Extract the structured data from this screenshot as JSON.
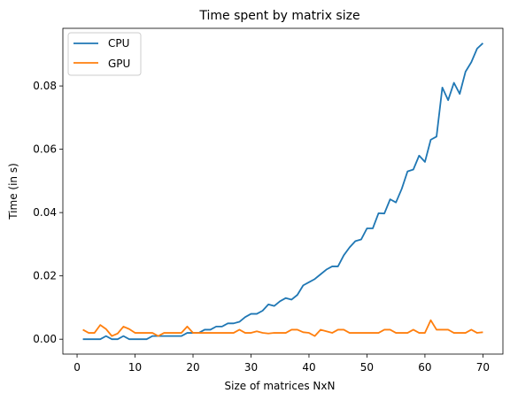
{
  "chart_data": {
    "type": "line",
    "title": "Time spent by matrix size",
    "xlabel": "Size of matrices NxN",
    "ylabel": "Time (in s)",
    "xlim": [
      -2.45,
      73.45
    ],
    "ylim": [
      -0.0047,
      0.0982
    ],
    "xticks": [
      0,
      10,
      20,
      30,
      40,
      50,
      60,
      70
    ],
    "yticks": [
      0.0,
      0.02,
      0.04,
      0.06,
      0.08
    ],
    "ytick_labels": [
      "0.00",
      "0.02",
      "0.04",
      "0.06",
      "0.08"
    ],
    "grid": false,
    "legend": "upper left",
    "x": [
      1,
      2,
      3,
      4,
      5,
      6,
      7,
      8,
      9,
      10,
      11,
      12,
      13,
      14,
      15,
      16,
      17,
      18,
      19,
      20,
      21,
      22,
      23,
      24,
      25,
      26,
      27,
      28,
      29,
      30,
      31,
      32,
      33,
      34,
      35,
      36,
      37,
      38,
      39,
      40,
      41,
      42,
      43,
      44,
      45,
      46,
      47,
      48,
      49,
      50,
      51,
      52,
      53,
      54,
      55,
      56,
      57,
      58,
      59,
      60,
      61,
      62,
      63,
      64,
      65,
      66,
      67,
      68,
      69,
      70
    ],
    "series": [
      {
        "name": "CPU",
        "color": "#1f77b4",
        "values": [
          0.0,
          0.0,
          0.0,
          0.0,
          0.001,
          0.0,
          0.0,
          0.001,
          0.0,
          0.0,
          0.0,
          0.0,
          0.001,
          0.001,
          0.001,
          0.001,
          0.001,
          0.001,
          0.002,
          0.002,
          0.002,
          0.003,
          0.003,
          0.004,
          0.004,
          0.005,
          0.005,
          0.0055,
          0.007,
          0.008,
          0.008,
          0.009,
          0.011,
          0.0105,
          0.012,
          0.013,
          0.0125,
          0.014,
          0.017,
          0.018,
          0.019,
          0.0205,
          0.022,
          0.023,
          0.023,
          0.0265,
          0.029,
          0.031,
          0.0315,
          0.035,
          0.035,
          0.0398,
          0.0397,
          0.0442,
          0.0432,
          0.0475,
          0.053,
          0.0536,
          0.058,
          0.056,
          0.063,
          0.064,
          0.0795,
          0.0755,
          0.081,
          0.0775,
          0.0845,
          0.0875,
          0.0918,
          0.0935
        ]
      },
      {
        "name": "GPU",
        "color": "#ff7f0e",
        "values": [
          0.003,
          0.002,
          0.002,
          0.0045,
          0.0032,
          0.001,
          0.0018,
          0.004,
          0.0032,
          0.002,
          0.002,
          0.002,
          0.002,
          0.001,
          0.002,
          0.002,
          0.002,
          0.002,
          0.004,
          0.002,
          0.002,
          0.002,
          0.002,
          0.002,
          0.002,
          0.002,
          0.002,
          0.003,
          0.002,
          0.002,
          0.0025,
          0.002,
          0.0018,
          0.002,
          0.002,
          0.002,
          0.003,
          0.003,
          0.0022,
          0.002,
          0.001,
          0.003,
          0.0025,
          0.002,
          0.003,
          0.003,
          0.002,
          0.002,
          0.002,
          0.002,
          0.002,
          0.002,
          0.003,
          0.003,
          0.002,
          0.002,
          0.002,
          0.003,
          0.002,
          0.002,
          0.006,
          0.003,
          0.003,
          0.003,
          0.002,
          0.002,
          0.002,
          0.003,
          0.002,
          0.0022
        ]
      }
    ]
  }
}
